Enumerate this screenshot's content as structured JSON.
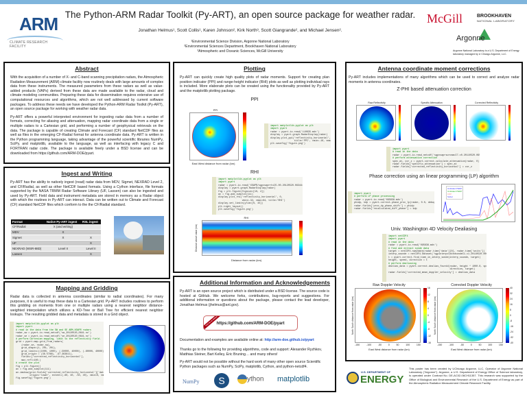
{
  "header": {
    "title": "The Python-ARM Radar Toolkit (Py-ART), an open source package for weather radar.",
    "authors": "Jonathan Helmus¹, Scott Collis¹, Karen Johnson², Kirk North³, Scott Giangrande², and Michael Jensen².",
    "affiliations": [
      "¹Environmental Science Division, Argonne National Laboratory",
      "²Environmental Sciences Department, Brookhaven National Laboratory",
      "³Atmospheric and Oceanic Sciences, McGill University"
    ],
    "arm_logo": "ARM",
    "arm_tagline": "CLIMATE RESEARCH FACILITY",
    "mcgill": "McGill",
    "bnl": "BROOKHAVEN",
    "bnl_sub": "NATIONAL LABORATORY",
    "argonne": "Argonne",
    "argonne_note": "Argonne National Laboratory is a U.S. Department of Energy laboratory managed by U Chicago Argonne, LLC."
  },
  "abstract": {
    "heading": "Abstract",
    "paragraphs": [
      "With the acquisition of a number of X- and C-band scanning precipitation radars, the Atmospheric Radiation Measurement (ARM) climate facility now routinely deals with large amounts of complex data from these instruments. The measured parameters from these radars as well as value-added products (VAPs) derived from these data are made available to the radar, cloud and climate modeling communities. Preparing these data for dissemination requires extensive use of computational resources and algorithms, which are not well addressed by current software packages. To address these needs we have developed the Python-ARM Radar Toolkit (Py-ART), an open source package for working with weather radar data.",
      "Py-ART offers a powerful interpreted environment for ingesting radar data from a number of formats, correcting for aliasing and attenuation, mapping radar coordinate data from a single or multiple radars to a Cartesian grid, and performing a number of geophysical retrievals on the data. The package is capable of creating Climate and Forecast (CF) standard NetCDF files as well as files in the emerging CF-Radial format for antenna coordinate data. Py-ART is written in the Python programming language, taking advantage of the powerful scientific libraries NumPy, SciPy, and matplotlib, available to the language, as well as interfacing with legacy C and FORTRAN radar code. The package is available freely under a BSD license and can be downloaded from https://github.com/ARM-DOE/pyart."
    ]
  },
  "ingest": {
    "heading": "Ingest and Writing",
    "text": "Py-ART has the ability to natively ingest (read) radar data from MDV, Sigmet, NEXRAD Level 2, and CF/Radial, as well as other NetCDF based formats. Using a Cython interface, file formats supported by the NASA TRMM Radar Software Library (UF, Lassen) can also be ingested and used by Py-ART. Field data and instrument metadata are stored in memory as a Radar object with which the routines in Py-ART can interact. Data can be written out to Climate and Forecast (CF) standard NetCDF files which conform to the the CF/Radial standard.",
    "table": {
      "headers": [
        "Format",
        "Native Py-ART ingest",
        "RSL ingest"
      ],
      "rows": [
        [
          "CF/Radial",
          "X (and writing)",
          ""
        ],
        [
          "MDV",
          "X",
          ""
        ],
        [
          "Sigmet",
          "X",
          "X"
        ],
        [
          "UF",
          "",
          "X"
        ],
        [
          "NEXRAD (WSR-88D)",
          "Level II",
          "Level II"
        ],
        [
          "Lassen",
          "",
          "X"
        ]
      ]
    }
  },
  "mapping": {
    "heading": "Mapping and Gridding",
    "text": "Radar data is collected in antenna coordinates (similar to radial coordinates). For many purposes, it is useful to map these data to a Cartesian grid. Py-ART includes routines to perform this gridding on moments from one or multiple radars using a nearest neighbor distance-weighted interpolation which utilizes a KD-Tree or Ball Tree for efficient nearest neighbor lookups. The resulting gridded data and metadata is stored in a Grid object.",
    "code": [
      "import matplotlib.pyplot as plt",
      "import pyart",
      "",
      "# read in the data from the SW and SE ARM-XSAPR radars",
      "radar_sw = pyart.io.read_netcdf('sw_20120520_0641.nc')",
      "radar_se = pyart.io.read_netcdf('se_20120520_0641.nc')",
      "",
      "# perform Cartesian mapping, limit to the reflectivity field.",
      "grid = pyart.map.grid_from_radars(",
      "    (radar_se, radar_sw),",
      "    grid_shape=(1, 201, 201),",
      "    grid_limits=((1000, 1000), (-50000, 40000), (-60000, 40000)),",
      "    grid_origin = (36.57861, -97.363611),",
      "    fields=['corrected_reflectivity_horizontal'],",
      "    max_refl=100.)",
      "",
      "# create the plot",
      "fig = plt.figure()",
      "ax = fig.add_subplot(111)",
      "ax.imshow(grid.fields['corrected_reflectivity_horizontal']['data'][0],",
      "          origin='lower', extent=(-60, 40, -50, 40), vmin=0, vmax=48)",
      "fig.savefig('figure.png')"
    ]
  },
  "plotting": {
    "heading": "Plotting",
    "text": "Py-ART can quickly create high quality plots of radar moments. Support for creating plan position indicator (PPI) and range-height indicator (RHI) plots as well as plotting individual rays is included. More elaborate plots can be created using the functionality provided by Py-ART and the matplotlib plotting package.",
    "ppi_label": "PPI",
    "rhi_label": "RHI",
    "ppi_plot_title": "PPI",
    "rhi_plot_title": "RHI",
    "ppi_xlabel": "East West distance from radar (km)",
    "ppi_ylabel": "North South distance from radar (km)",
    "rhi_xlabel": "Distance from radar (km)",
    "rhi_ylabel": "Distance above radar (km)",
    "ppi_code": [
      "import matplotlib.pyplot as plt",
      "import pyart",
      "",
      "radar = pyart.io.read('110635.mdv')",
      "display = pyart.graph.RadarDisplay(radar)",
      "display.plot_ppi('reflectivity_horizontal', 0,",
      "                 title='PPI', vmin=-16, vmax=64)",
      "plt.savefig('figure.png')"
    ],
    "rhi_code": [
      "import matplotlib.pyplot as plt",
      "import pyart",
      "",
      "radar = pyart.io.read('XSAPR/sgpxsaprrhiI5.00.20120520.063444.RAW')",
      "display = pyart.graph.RadarDisplay(radar)",
      "",
      "fig = plt.figure(figsize=[10, 4])",
      "ax = fig.add_subplot(111)",
      "display.plot_rhi('reflectivity_horizontal', 0,",
      "                 vmin=-32, vmax=64, title='RHI')",
      "display.set_limits(ylim=[0, 15])",
      "plt.tight_layout()",
      "plt.savefig('figure.png')"
    ]
  },
  "additional": {
    "heading": "Additional Information and Acknowledgements",
    "p1": "Py-ART is an open source project which is distributed under a BSD license. The source code is hosted at GitHub. We welcome forks, contributions, bug-reports and suggestions. For additional information or questions about the package, please contact the lead developer, Jonathan Helmus (jhelmus@anl.gov).",
    "github_url": "https://github.com/ARM-DOE/pyart",
    "github_ribbon": "Fork me on GitHub",
    "docs_prefix": "Documentation and examples are available online at: ",
    "docs_url": "http://arm-doe.github.io/pyart",
    "thanks": "Thanks go to the following for providing algorithms, code and support: Alexander Ryzhkov, Matthias Steiner, Bart Kelley, Eric Bruning… and many others!",
    "packages": "Py-ART would not be possible without the hard work of many other open source Scientific Python packages such as NumPy, SciPy, matplotlib, Cython, and python-netcdf4.",
    "logos": [
      "NumPy",
      "S",
      "ython",
      "matplotlib"
    ]
  },
  "corrections": {
    "heading": "Antenna coordinate moment corrections",
    "text": "Py-ART includes implementations of many algorithms which can be used to correct and analyze radar moments in antenna coordinates.",
    "zphi_title": "Z-PHI based attenuation correction",
    "zphi_plots": [
      "Raw Reflectivity",
      "Specific Attenuation",
      "Corrected Reflectivity"
    ],
    "zphi_code": [
      "import pyart",
      "",
      "# read in the data",
      "radar = pyart.io.read_netcdf('sgpxsaprsurcmacI7.c0.20110520.095101.nc')",
      "",
      "# perform attenuation correction",
      "spec_at, cor_z = pyart.correct.calculate_attenuation(radar, 0)",
      "radar.fields['specific_attenuation'] = spec_at",
      "radar.fields['corrected_reflectivity_horizontal'] = cor_z"
    ],
    "lp_title": "Phase correction using an linear programming (LP) algorithm",
    "lp_code": [
      "import pyart",
      "",
      "# perform LP phase processing",
      "radar = pyart.io.read('095636.mdv')",
      "phidp, kdp = pyart.correct.phase_proc_lp(radar, 0.0, debug=True)",
      "radar.fields['proc_dp_phase_shift'] = phidp",
      "radar.fields['recalculated_diff_phase'] = kdp"
    ],
    "lp_legend": [
      "Unfolded PhiDP",
      "Unfolded PhiDP",
      "KDP",
      "Sobel"
    ],
    "dealias_title": "Univ. Washington 4D Velocity Dealiasing",
    "dealias_code": [
      "import netCDF4",
      "import pyart",
      "",
      "# read in the data",
      "radar = pyart.io.read('095636.mdv')",
      "",
      "# find and extract sonde data",
      "target = netCDF4.num2date(radar.time['data'][0], radar.time['units'])",
      "interp_sounde = netCDF4.Dataset('sgpinterpolatedsondeC1.c1.20110520.000000.cdf')",
      "t = pyart.correct.find_time_in_interp_sonde(interp_sounde, target)",
      "height, speed, direction = t",
      "",
      "# perform dealiasing",
      "dealias_data = pyart.correct.dealias_fourdd(radar, height * 1000.0, speed,",
      "                                            direction, target)",
      "radar.fields['corrected_mean_doppler_velocity'] = dealias_data"
    ],
    "vel_plots": [
      "Raw Doppler Velocity",
      "Corrected Doppler Velocity"
    ],
    "vel_xlabel": "East West distance from radar (km)",
    "vel_ylabel": "North South distance from radar (km)",
    "vel_xticks": [
      "-150",
      "-100",
      "-50",
      "0",
      "50",
      "100",
      "150"
    ],
    "raw_cbar": [
      "16",
      "12",
      "8",
      "4",
      "0",
      "-4",
      "-8",
      "-12",
      "-16"
    ],
    "cor_cbar": [
      "40",
      "32",
      "24",
      "16",
      "8",
      "0",
      "-8",
      "-16",
      "-24",
      "-32",
      "-40"
    ]
  },
  "footer": {
    "doe_top": "U.S. DEPARTMENT OF",
    "doe": "ENERGY",
    "text": "This poster has been created by UChicago Argonne, LLC, Operator of Argonne National Laboratory (\"Argonne\"). Argonne, a U.S. Department of Energy Office of Science laboratory, is operated under Contract No. DE-AC02-06CH11357. This research was supported by the Office of Biological and Environmental Research of the U.S. Department of Energy as part of the Atmospheric Radiation Measurement Climate Research Facility."
  },
  "colors": {
    "topbar": "#7fb5dc",
    "arm_blue": "#1d4f8c",
    "mcgill_red": "#c8102e",
    "doe_green": "#3a7d2c",
    "link": "#2255cc"
  }
}
